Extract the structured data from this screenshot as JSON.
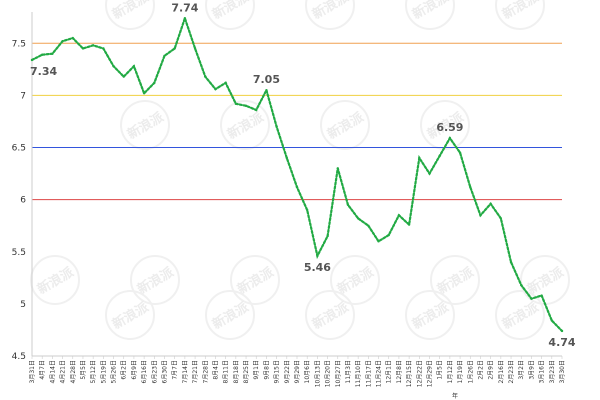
{
  "chart_data": {
    "type": "line",
    "title": "",
    "xlabel": "",
    "ylabel": "",
    "ylim": [
      4.5,
      7.8
    ],
    "yticks": [
      4.5,
      5,
      5.5,
      6,
      6.5,
      7,
      7.5
    ],
    "ytick_labels": [
      "4.5",
      "5",
      "5.5",
      "6",
      "6.5",
      "7",
      "7.5"
    ],
    "grid": false,
    "legend": "none",
    "series_color": "#22aa44",
    "watermark_text": "新浪派",
    "reference_lines": [
      {
        "y": 7.5,
        "color": "#f0a050"
      },
      {
        "y": 7.0,
        "color": "#f0d040"
      },
      {
        "y": 6.5,
        "color": "#3355dd"
      },
      {
        "y": 6.0,
        "color": "#dd4444"
      }
    ],
    "x": [
      "3月31日",
      "4月7日",
      "4月14日",
      "4月21日",
      "4月28日",
      "5月5日",
      "5月12日",
      "5月19日",
      "5月26日",
      "6月2日",
      "6月9日",
      "6月16日",
      "6月23日",
      "6月30日",
      "7月7日",
      "7月14日",
      "7月21日",
      "7月28日",
      "8月4日",
      "8月11日",
      "8月18日",
      "8月25日",
      "9月1日",
      "9月8日",
      "9月15日",
      "9月22日",
      "9月29日",
      "10月6日",
      "10月13日",
      "10月20日",
      "10月27日",
      "11月3日",
      "11月10日",
      "11月17日",
      "11月24日",
      "12月1日",
      "12月8日",
      "12月15日",
      "12月22日",
      "12月29日",
      "1月5日",
      "1月12日",
      "1月19日",
      "1月26日",
      "2月2日",
      "2月9日",
      "2月16日",
      "2月23日",
      "3月2日",
      "3月9日",
      "3月16日",
      "3月23日",
      "3月30日"
    ],
    "x_extra_labels": [
      {
        "after_index": 41,
        "text": "年"
      }
    ],
    "values": [
      7.34,
      7.39,
      7.4,
      7.52,
      7.55,
      7.45,
      7.48,
      7.45,
      7.28,
      7.18,
      7.28,
      7.02,
      7.12,
      7.38,
      7.45,
      7.74,
      7.45,
      7.18,
      7.06,
      7.12,
      6.92,
      6.9,
      6.86,
      7.05,
      6.7,
      6.4,
      6.12,
      5.9,
      5.46,
      5.65,
      6.3,
      5.95,
      5.82,
      5.75,
      5.6,
      5.66,
      5.85,
      5.76,
      6.4,
      6.25,
      6.42,
      6.59,
      6.45,
      6.12,
      5.85,
      5.96,
      5.82,
      5.4,
      5.18,
      5.05,
      5.08,
      4.84,
      4.74
    ],
    "annotations": [
      {
        "index": 0,
        "label": "7.34",
        "position": "below"
      },
      {
        "index": 15,
        "label": "7.74",
        "position": "above"
      },
      {
        "index": 23,
        "label": "7.05",
        "position": "above"
      },
      {
        "index": 28,
        "label": "5.46",
        "position": "below"
      },
      {
        "index": 41,
        "label": "6.59",
        "position": "above"
      },
      {
        "index": 52,
        "label": "4.74",
        "position": "below"
      }
    ]
  }
}
